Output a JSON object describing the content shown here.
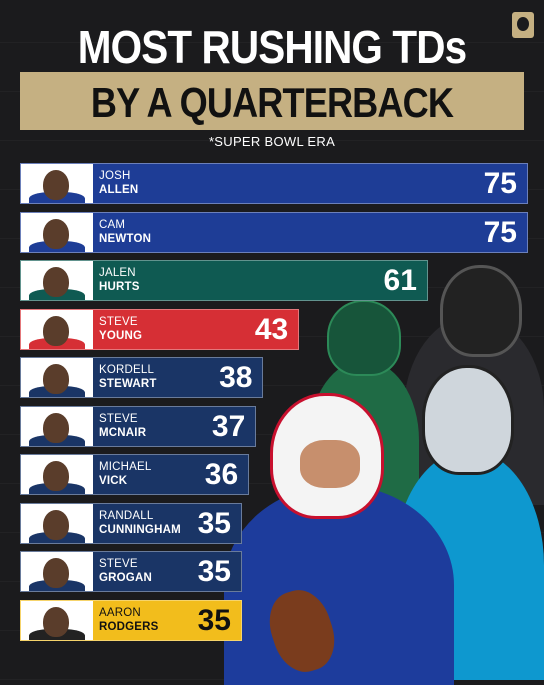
{
  "header": {
    "title_line1": "MOST RUSHING TDs",
    "title_line2": "BY A QUARTERBACK",
    "subtitle": "*SUPER BOWL ERA"
  },
  "colors": {
    "gold": "#c5b082",
    "background": "#1b1b1d",
    "bills": "#1e3d96",
    "eagles": "#0f5a52",
    "fortyniners": "#d62f35",
    "navy": "#1a3566",
    "steelers": "#f2bd1c"
  },
  "chart_data": {
    "type": "bar",
    "orientation": "horizontal",
    "title": "MOST RUSHING TDs BY A QUARTERBACK",
    "subtitle": "*SUPER BOWL ERA",
    "xlim": [
      0,
      75
    ],
    "categories": [
      {
        "first": "JOSH",
        "last": "ALLEN"
      },
      {
        "first": "CAM",
        "last": "NEWTON"
      },
      {
        "first": "JALEN",
        "last": "HURTS"
      },
      {
        "first": "STEVE",
        "last": "YOUNG"
      },
      {
        "first": "KORDELL",
        "last": "STEWART"
      },
      {
        "first": "STEVE",
        "last": "MCNAIR"
      },
      {
        "first": "MICHAEL",
        "last": "VICK"
      },
      {
        "first": "RANDALL",
        "last": "CUNNINGHAM"
      },
      {
        "first": "STEVE",
        "last": "GROGAN"
      },
      {
        "first": "AARON",
        "last": "RODGERS"
      }
    ],
    "values": [
      75,
      75,
      61,
      43,
      38,
      37,
      36,
      35,
      35,
      35
    ],
    "bar_colors": [
      "#1e3d96",
      "#1e3d96",
      "#0f5a52",
      "#d62f35",
      "#1a3566",
      "#1a3566",
      "#1a3566",
      "#1a3566",
      "#1a3566",
      "#f2bd1c"
    ],
    "badges": [
      "bills-logo",
      "nfl-shield",
      "eagles-logo",
      "hall-of-fame-badge",
      "nfl-shield",
      "nfl-shield",
      "nfl-shield",
      "nfl-shield",
      "nfl-shield",
      "steelers-logo"
    ]
  }
}
